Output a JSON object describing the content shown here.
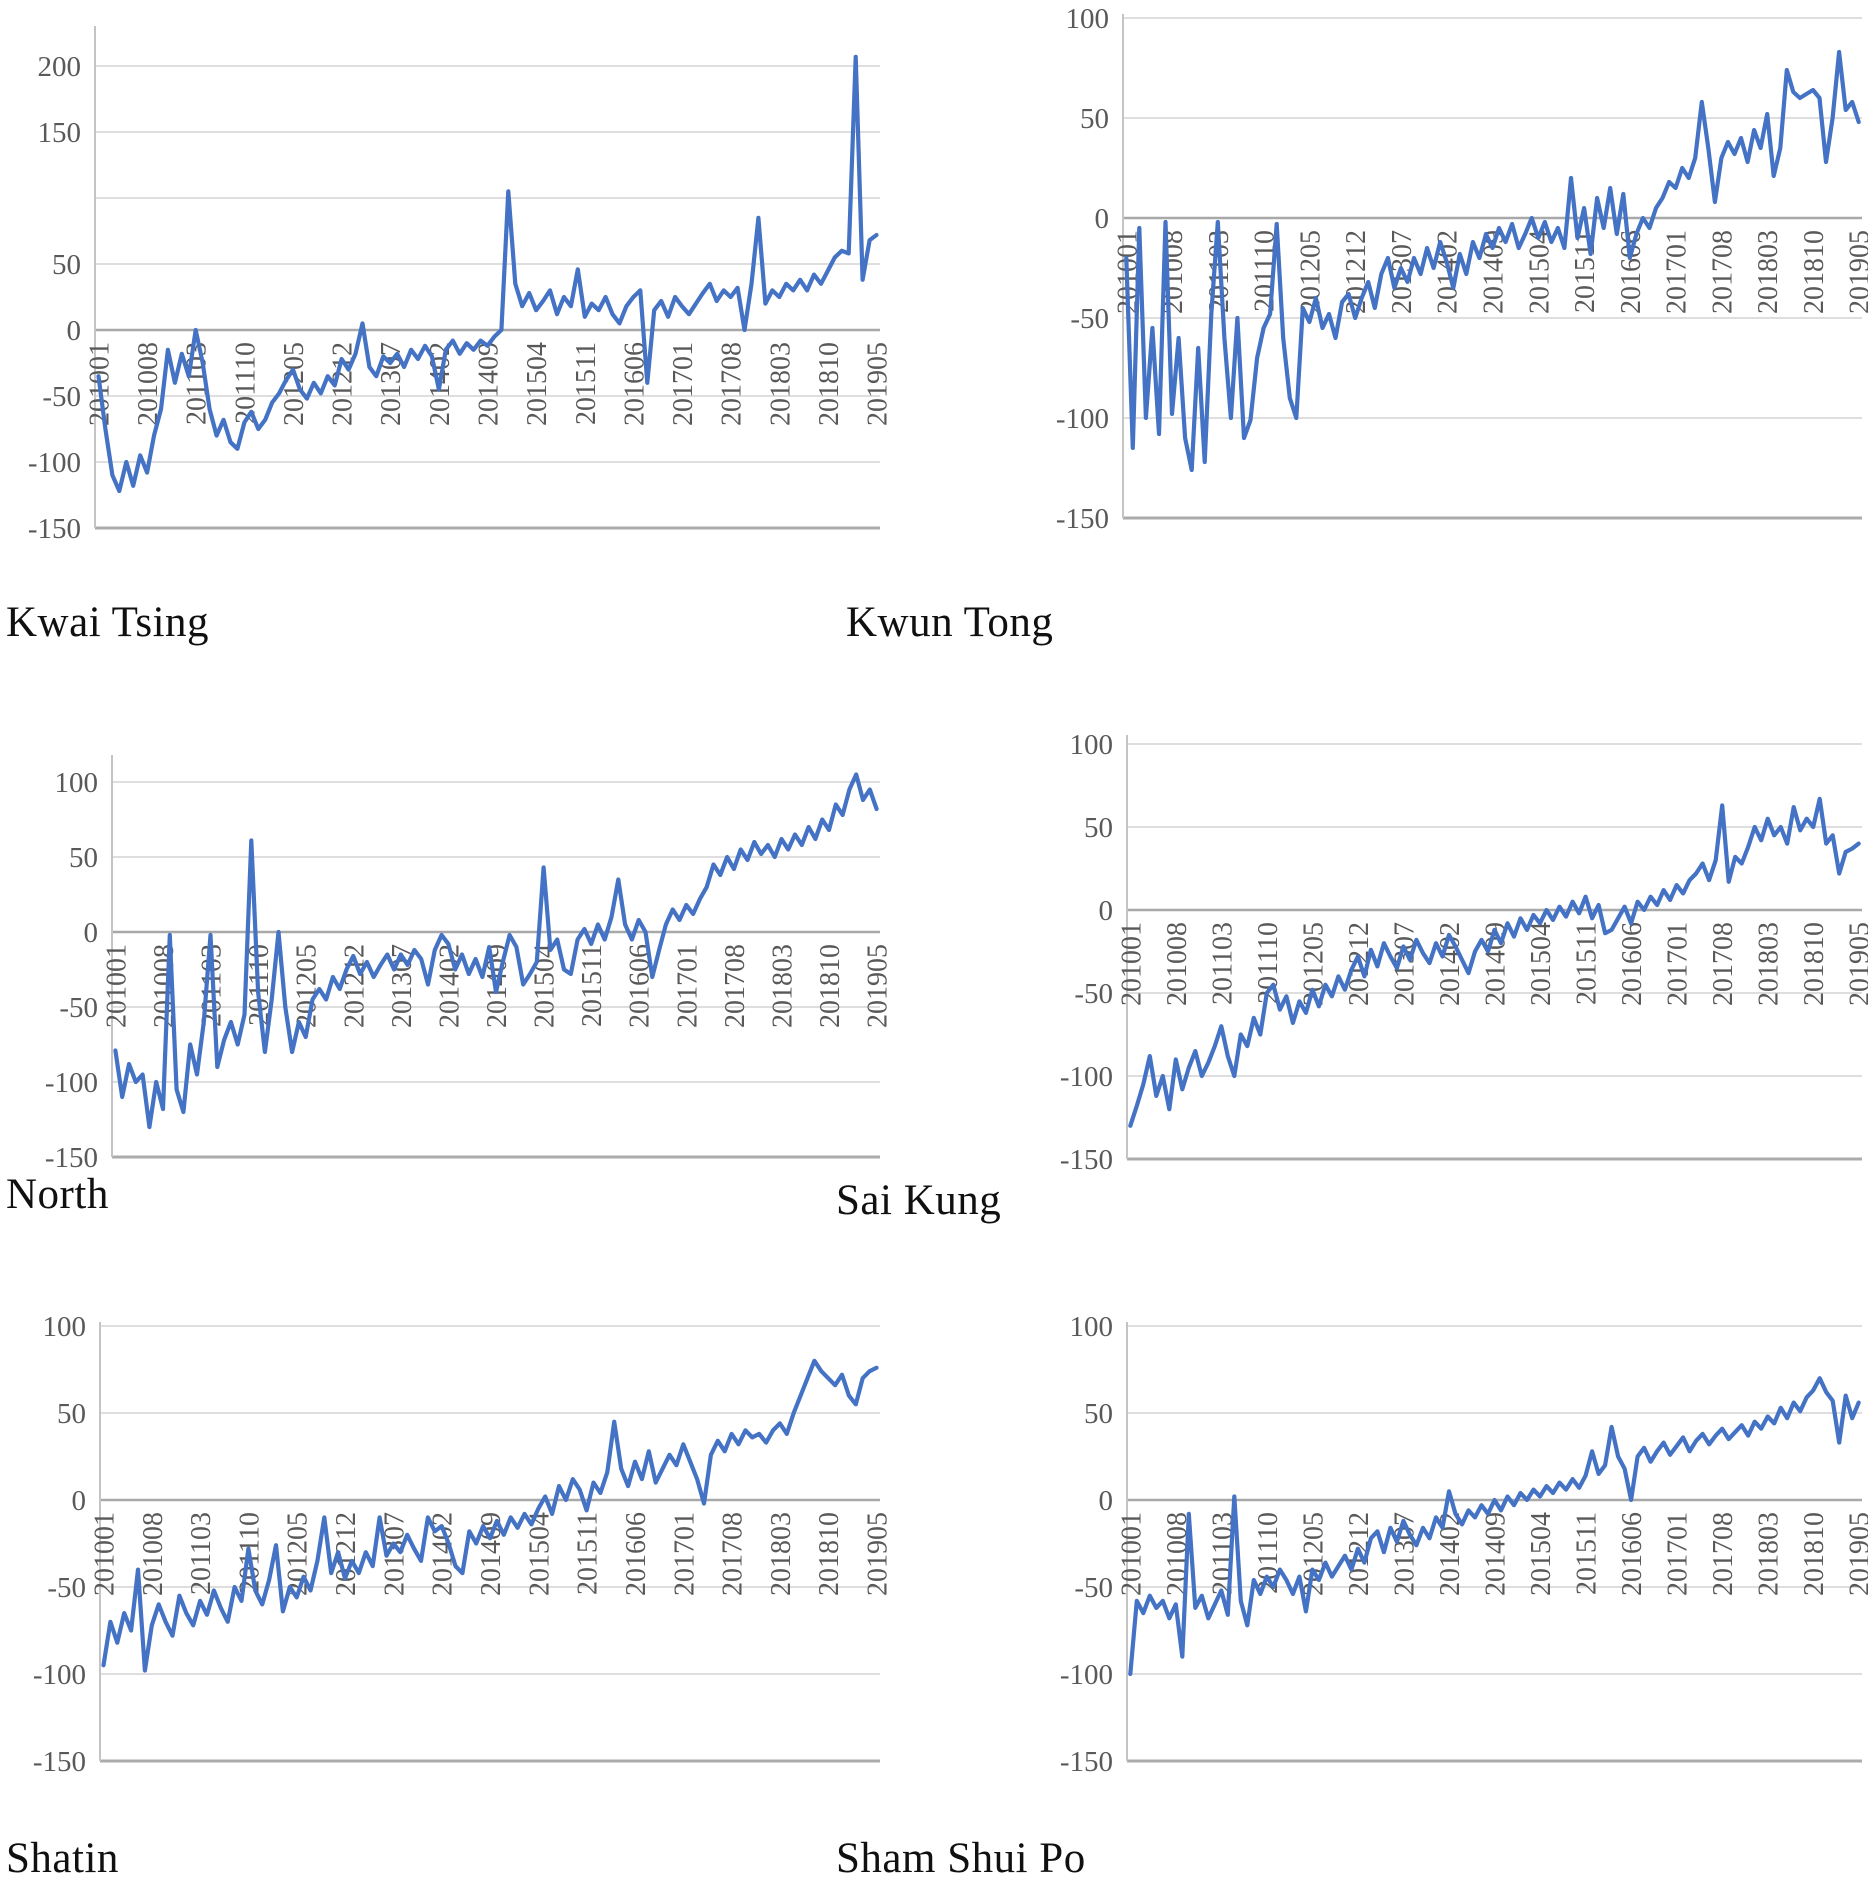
{
  "page": {
    "background": "#ffffff"
  },
  "styles": {
    "line_color": "#4472C4",
    "grid_color": "#D9D9D9",
    "zero_line_color": "#A8A8A8",
    "axis_color": "#C4C4C4",
    "tick_label_color": "#595959",
    "title_color": "#101010"
  },
  "chart_data": [
    {
      "type": "line",
      "title": "Kwai Tsing",
      "legend": "none",
      "grid": "horizontal",
      "x_start": "201001",
      "x_end": "201905",
      "n_points": 113,
      "x_tick_labels": [
        "201001",
        "201008",
        "201103",
        "201110",
        "201205",
        "201212",
        "201307",
        "201402",
        "201409",
        "201504",
        "201511",
        "201606",
        "201701",
        "201708",
        "201803",
        "201810",
        "201905"
      ],
      "y_ticks": [
        200,
        150,
        100,
        50,
        0,
        -50,
        -100,
        -150
      ],
      "y_tick_labels": [
        "200",
        "150",
        "",
        "50",
        "0",
        "-50",
        "-100",
        "-150"
      ],
      "ylim": [
        -150,
        230
      ],
      "values": [
        -35,
        -75,
        -110,
        -122,
        -100,
        -118,
        -95,
        -108,
        -80,
        -60,
        -15,
        -40,
        -18,
        -35,
        0,
        -25,
        -60,
        -80,
        -68,
        -85,
        -90,
        -70,
        -62,
        -75,
        -68,
        -55,
        -48,
        -38,
        -30,
        -45,
        -52,
        -40,
        -48,
        -35,
        -42,
        -22,
        -30,
        -18,
        5,
        -28,
        -35,
        -20,
        -25,
        -18,
        -28,
        -15,
        -22,
        -12,
        -20,
        -45,
        -15,
        -8,
        -18,
        -10,
        -15,
        -8,
        -12,
        -5,
        0,
        105,
        35,
        18,
        28,
        15,
        22,
        30,
        12,
        25,
        18,
        46,
        10,
        20,
        15,
        25,
        12,
        5,
        18,
        25,
        30,
        -40,
        15,
        22,
        10,
        25,
        18,
        12,
        20,
        28,
        35,
        22,
        30,
        25,
        32,
        0,
        35,
        85,
        20,
        30,
        25,
        35,
        30,
        38,
        30,
        42,
        35,
        45,
        55,
        60,
        58,
        207,
        38,
        68,
        72
      ]
    },
    {
      "type": "line",
      "title": "Kwun Tong",
      "legend": "none",
      "grid": "horizontal",
      "x_start": "201001",
      "x_end": "201905",
      "n_points": 113,
      "x_tick_labels": [
        "201001",
        "201008",
        "201103",
        "201110",
        "201205",
        "201212",
        "201307",
        "201402",
        "201409",
        "201504",
        "201511",
        "201606",
        "201701",
        "201708",
        "201803",
        "201810",
        "201905"
      ],
      "y_ticks": [
        100,
        50,
        0,
        -50,
        -100,
        -150
      ],
      "y_tick_labels": [
        "100",
        "50",
        "0",
        "-50",
        "-100",
        "-150"
      ],
      "ylim": [
        -150,
        102
      ],
      "values": [
        -20,
        -115,
        -5,
        -100,
        -55,
        -108,
        -2,
        -98,
        -60,
        -110,
        -126,
        -65,
        -122,
        -48,
        -2,
        -60,
        -100,
        -50,
        -110,
        -101,
        -70,
        -55,
        -48,
        -3,
        -60,
        -90,
        -100,
        -45,
        -52,
        -40,
        -55,
        -48,
        -60,
        -42,
        -38,
        -50,
        -40,
        -32,
        -45,
        -28,
        -20,
        -35,
        -25,
        -32,
        -20,
        -28,
        -15,
        -25,
        -12,
        -22,
        -35,
        -18,
        -28,
        -12,
        -20,
        -8,
        -15,
        -5,
        -12,
        -3,
        -15,
        -8,
        0,
        -10,
        -2,
        -12,
        -5,
        -15,
        20,
        -10,
        5,
        -18,
        10,
        -5,
        15,
        -8,
        12,
        -20,
        -8,
        0,
        -5,
        5,
        10,
        18,
        15,
        25,
        20,
        30,
        58,
        35,
        8,
        30,
        38,
        32,
        40,
        28,
        44,
        35,
        52,
        21,
        35,
        74,
        63,
        60,
        62,
        64,
        60,
        28,
        50,
        83,
        54,
        58,
        48
      ]
    },
    {
      "type": "line",
      "title": "North",
      "legend": "none",
      "grid": "horizontal",
      "x_start": "201001",
      "x_end": "201905",
      "n_points": 113,
      "x_tick_labels": [
        "201001",
        "201008",
        "201103",
        "201110",
        "201205",
        "201212",
        "201307",
        "201402",
        "201409",
        "201504",
        "201511",
        "201606",
        "201701",
        "201708",
        "201803",
        "201810",
        "201905"
      ],
      "y_ticks": [
        100,
        50,
        0,
        -50,
        -100,
        -150
      ],
      "y_tick_labels": [
        "100",
        "50",
        "0",
        "-50",
        "-100",
        "-150"
      ],
      "ylim": [
        -150,
        118
      ],
      "values": [
        -79,
        -110,
        -88,
        -100,
        -95,
        -130,
        -100,
        -118,
        -2,
        -105,
        -120,
        -75,
        -95,
        -60,
        -2,
        -90,
        -72,
        -60,
        -75,
        -55,
        61,
        -40,
        -80,
        -45,
        0,
        -50,
        -80,
        -60,
        -70,
        -45,
        -38,
        -45,
        -30,
        -38,
        -25,
        -16,
        -28,
        -20,
        -30,
        -22,
        -15,
        -25,
        -15,
        -22,
        -12,
        -18,
        -35,
        -12,
        -2,
        -8,
        -25,
        -15,
        -28,
        -18,
        -30,
        -10,
        -40,
        -20,
        -2,
        -10,
        -35,
        -28,
        -20,
        43,
        -12,
        -5,
        -25,
        -28,
        -5,
        2,
        -8,
        5,
        -5,
        10,
        35,
        5,
        -5,
        8,
        0,
        -30,
        -12,
        5,
        15,
        8,
        18,
        12,
        22,
        30,
        45,
        38,
        50,
        42,
        55,
        48,
        60,
        52,
        58,
        50,
        62,
        55,
        65,
        58,
        70,
        62,
        75,
        68,
        85,
        78,
        95,
        105,
        88,
        95,
        82
      ]
    },
    {
      "type": "line",
      "title": "Sai Kung",
      "legend": "none",
      "grid": "horizontal",
      "x_start": "201001",
      "x_end": "201905",
      "n_points": 113,
      "x_tick_labels": [
        "201001",
        "201008",
        "201103",
        "201110",
        "201205",
        "201212",
        "201307",
        "201402",
        "201409",
        "201504",
        "201511",
        "201606",
        "201701",
        "201708",
        "201803",
        "201810",
        "201905"
      ],
      "y_ticks": [
        100,
        50,
        0,
        -50,
        -100,
        -150
      ],
      "y_tick_labels": [
        "100",
        "50",
        "0",
        "-50",
        "-100",
        "-150"
      ],
      "ylim": [
        -150,
        106
      ],
      "values": [
        -130,
        -118,
        -105,
        -88,
        -112,
        -100,
        -120,
        -90,
        -108,
        -95,
        -85,
        -100,
        -92,
        -82,
        -70,
        -88,
        -100,
        -75,
        -82,
        -65,
        -75,
        -50,
        -45,
        -60,
        -52,
        -68,
        -55,
        -62,
        -48,
        -58,
        -45,
        -52,
        -40,
        -48,
        -36,
        -28,
        -40,
        -24,
        -34,
        -20,
        -28,
        -35,
        -22,
        -30,
        -18,
        -26,
        -32,
        -20,
        -28,
        -15,
        -22,
        -30,
        -38,
        -25,
        -18,
        -25,
        -12,
        -20,
        -8,
        -16,
        -5,
        -12,
        -3,
        -8,
        0,
        -6,
        2,
        -4,
        5,
        -2,
        8,
        -5,
        3,
        -14,
        -12,
        -5,
        2,
        -8,
        5,
        0,
        8,
        3,
        12,
        6,
        15,
        10,
        18,
        22,
        28,
        18,
        30,
        63,
        17,
        32,
        28,
        38,
        50,
        42,
        55,
        45,
        50,
        40,
        62,
        48,
        55,
        50,
        67,
        40,
        45,
        22,
        35,
        37,
        40
      ]
    },
    {
      "type": "line",
      "title": "Shatin",
      "legend": "none",
      "grid": "horizontal",
      "x_start": "201001",
      "x_end": "201905",
      "n_points": 113,
      "x_tick_labels": [
        "201001",
        "201008",
        "201103",
        "201110",
        "201205",
        "201212",
        "201307",
        "201402",
        "201409",
        "201504",
        "201511",
        "201606",
        "201701",
        "201708",
        "201803",
        "201810",
        "201905"
      ],
      "y_ticks": [
        100,
        50,
        0,
        -50,
        -100,
        -150
      ],
      "y_tick_labels": [
        "100",
        "50",
        "0",
        "-50",
        "-100",
        "-150"
      ],
      "ylim": [
        -150,
        102
      ],
      "values": [
        -95,
        -70,
        -82,
        -65,
        -75,
        -40,
        -98,
        -72,
        -60,
        -70,
        -78,
        -55,
        -65,
        -72,
        -58,
        -66,
        -52,
        -62,
        -70,
        -50,
        -58,
        -28,
        -52,
        -60,
        -46,
        -26,
        -64,
        -50,
        -56,
        -44,
        -52,
        -35,
        -10,
        -42,
        -30,
        -45,
        -35,
        -42,
        -30,
        -38,
        -10,
        -32,
        -25,
        -30,
        -20,
        -28,
        -35,
        -10,
        -18,
        -15,
        -25,
        -38,
        -42,
        -18,
        -25,
        -15,
        -22,
        -12,
        -20,
        -10,
        -16,
        -8,
        -14,
        -5,
        2,
        -8,
        8,
        0,
        12,
        6,
        -6,
        10,
        4,
        16,
        45,
        18,
        8,
        22,
        12,
        28,
        10,
        18,
        26,
        20,
        32,
        22,
        12,
        -2,
        26,
        34,
        28,
        38,
        32,
        40,
        36,
        38,
        33,
        40,
        44,
        38,
        50,
        60,
        70,
        80,
        74,
        70,
        66,
        72,
        60,
        55,
        70,
        74,
        76
      ]
    },
    {
      "type": "line",
      "title": "Sham Shui Po",
      "legend": "none",
      "grid": "horizontal",
      "x_start": "201001",
      "x_end": "201905",
      "n_points": 113,
      "x_tick_labels": [
        "201001",
        "201008",
        "201103",
        "201110",
        "201205",
        "201212",
        "201307",
        "201402",
        "201409",
        "201504",
        "201511",
        "201606",
        "201701",
        "201708",
        "201803",
        "201810",
        "201905"
      ],
      "y_ticks": [
        100,
        50,
        0,
        -50,
        -100,
        -150
      ],
      "y_tick_labels": [
        "100",
        "50",
        "0",
        "-50",
        "-100",
        "-150"
      ],
      "ylim": [
        -150,
        102
      ],
      "values": [
        -100,
        -58,
        -65,
        -55,
        -62,
        -58,
        -68,
        -60,
        -90,
        -8,
        -62,
        -55,
        -68,
        -60,
        -52,
        -66,
        2,
        -58,
        -72,
        -46,
        -54,
        -44,
        -50,
        -40,
        -46,
        -54,
        -44,
        -64,
        -40,
        -46,
        -36,
        -44,
        -38,
        -32,
        -40,
        -28,
        -36,
        -22,
        -18,
        -30,
        -16,
        -24,
        -12,
        -20,
        -26,
        -16,
        -22,
        -10,
        -16,
        5,
        -8,
        -14,
        -6,
        -10,
        -3,
        -8,
        0,
        -6,
        2,
        -3,
        4,
        0,
        6,
        2,
        8,
        4,
        10,
        6,
        12,
        7,
        14,
        28,
        15,
        20,
        42,
        25,
        18,
        0,
        25,
        30,
        22,
        28,
        33,
        26,
        31,
        36,
        28,
        34,
        38,
        32,
        37,
        41,
        35,
        39,
        43,
        37,
        45,
        41,
        48,
        44,
        53,
        47,
        56,
        51,
        59,
        63,
        70,
        62,
        57,
        33,
        60,
        47,
        56
      ]
    }
  ]
}
